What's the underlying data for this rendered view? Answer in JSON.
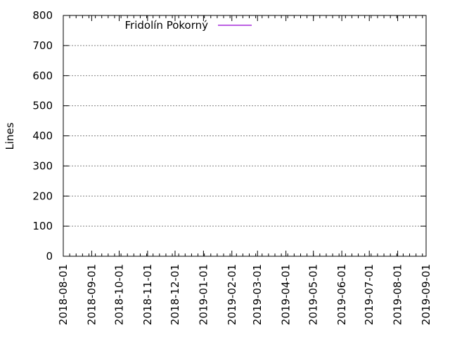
{
  "chart_data": {
    "type": "line",
    "title": "",
    "xlabel": "",
    "ylabel": "Lines",
    "ylim": [
      0,
      800
    ],
    "yticks": [
      0,
      100,
      200,
      300,
      400,
      500,
      600,
      700,
      800
    ],
    "xlim": [
      "2018-08-01",
      "2019-09-01"
    ],
    "xticks": [
      "2018-08-01",
      "2018-09-01",
      "2018-10-01",
      "2018-11-01",
      "2018-12-01",
      "2019-01-01",
      "2019-02-01",
      "2019-03-01",
      "2019-04-01",
      "2019-05-01",
      "2019-06-01",
      "2019-07-01",
      "2019-08-01",
      "2019-09-01"
    ],
    "grid": true,
    "legend_position": "top-left",
    "series": [
      {
        "name": "Fridolín Pokorný",
        "color": "#9400d3",
        "x": [],
        "y": []
      }
    ]
  }
}
